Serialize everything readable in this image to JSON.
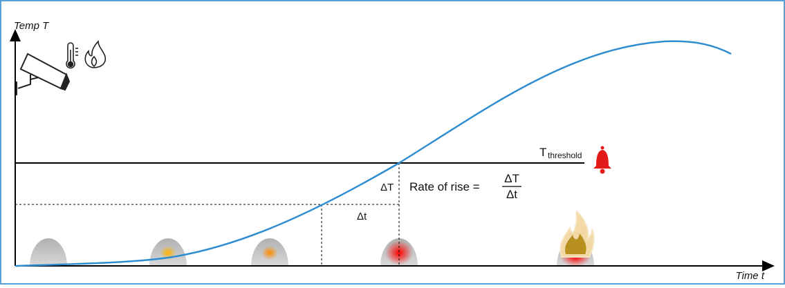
{
  "axes": {
    "y_label": "Temp T",
    "x_label": "Time t"
  },
  "threshold": {
    "symbol": "T",
    "subscript": "threshold"
  },
  "annotations": {
    "delta_T": "ΔT",
    "delta_t": "Δt"
  },
  "rate": {
    "label": "Rate of rise =",
    "numerator": "ΔT",
    "denominator": "Δt"
  }
}
